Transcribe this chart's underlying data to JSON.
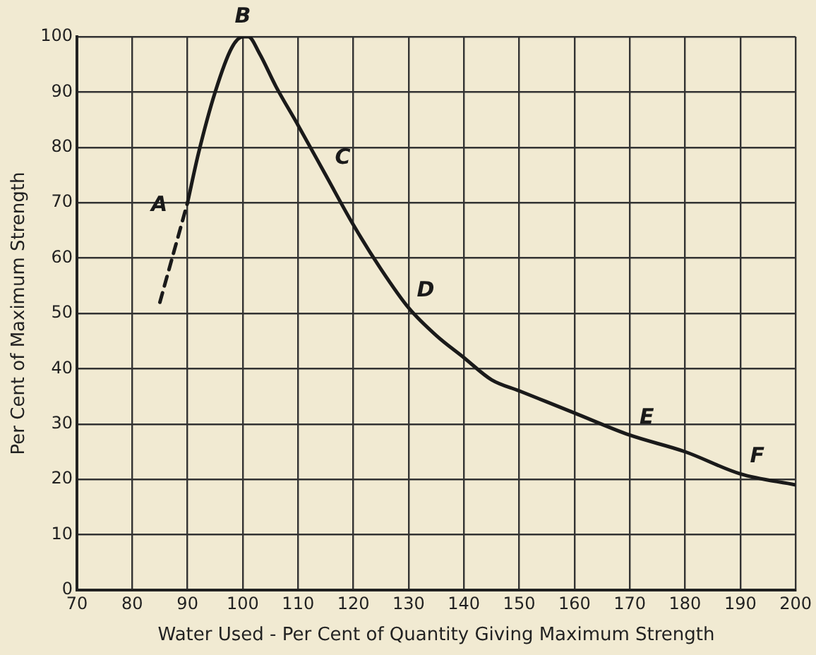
{
  "chart_data": {
    "type": "line",
    "xlabel": "Water Used - Per Cent of Quantity Giving Maximum Strength",
    "ylabel": "Per Cent of Maximum Strength",
    "series": [
      {
        "color": "#1a1a1a",
        "line_style": "dashed",
        "x": [
          85,
          90
        ],
        "values": [
          52,
          70
        ]
      },
      {
        "color": "#1a1a1a",
        "line_style": "solid",
        "x": [
          90,
          92,
          95,
          98,
          100,
          101,
          103,
          106,
          110,
          115,
          120,
          125,
          130,
          135,
          140,
          145,
          150,
          160,
          170,
          180,
          190,
          200
        ],
        "values": [
          70,
          79,
          90,
          98,
          100,
          100,
          97,
          91,
          84,
          75,
          66,
          58,
          51,
          46,
          42,
          38,
          36,
          32,
          28,
          25,
          21,
          19
        ]
      }
    ],
    "xlim": [
      70,
      200
    ],
    "xticks": [
      70,
      80,
      90,
      100,
      110,
      120,
      130,
      140,
      150,
      160,
      170,
      180,
      190,
      200
    ],
    "ylim": [
      0,
      100
    ],
    "yticks": [
      0,
      10,
      20,
      30,
      40,
      50,
      60,
      70,
      80,
      90,
      100
    ],
    "grid": true,
    "legend": false,
    "marker": "none",
    "annotations": [
      {
        "text": "A",
        "x": 90,
        "y": 70
      },
      {
        "text": "B",
        "x": 100,
        "y": 100
      },
      {
        "text": "C",
        "x": 115,
        "y": 75
      },
      {
        "text": "D",
        "x": 130,
        "y": 51
      },
      {
        "text": "E",
        "x": 170,
        "y": 28
      },
      {
        "text": "F",
        "x": 190,
        "y": 21
      }
    ]
  }
}
